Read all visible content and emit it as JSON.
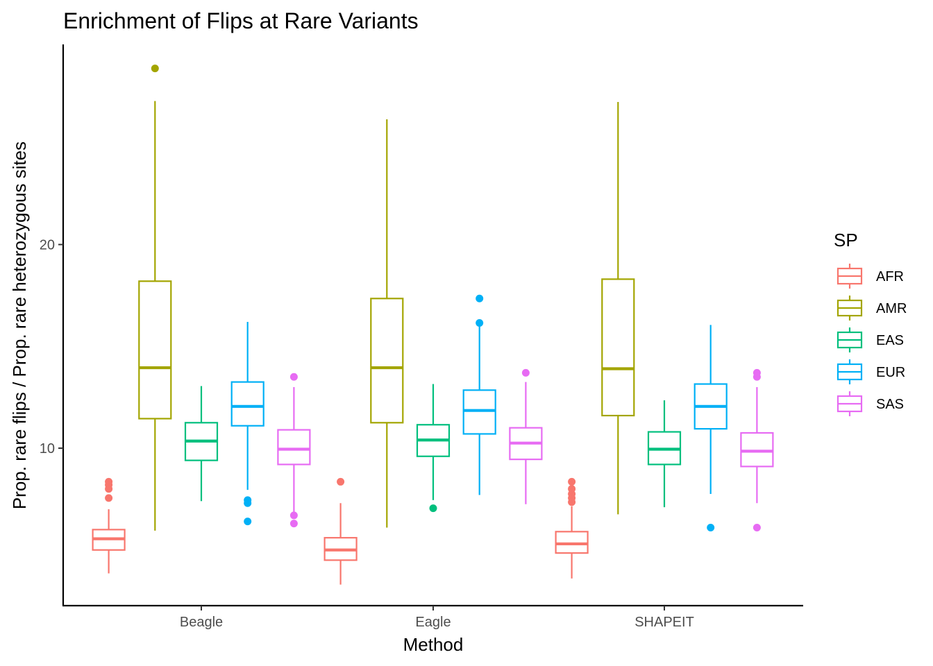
{
  "chart_data": {
    "type": "boxplot",
    "title": "Enrichment of Flips at Rare Variants",
    "xlabel": "Method",
    "ylabel": "Prop. rare flips / Prop. rare heterozygous sites",
    "categories": [
      "Beagle",
      "Eagle",
      "SHAPEIT"
    ],
    "y_ticks": [
      10,
      20
    ],
    "ylim": [
      2.4,
      30.0
    ],
    "grid": false,
    "legend": {
      "title": "SP",
      "position": "right"
    },
    "series": [
      {
        "name": "AFR",
        "color": "#F8766D",
        "boxes": [
          {
            "whisker_low": 3.85,
            "q1": 5.0,
            "median": 5.55,
            "q3": 6.0,
            "whisker_high": 7.0,
            "outliers": [
              7.55,
              8.0,
              8.2,
              8.35
            ]
          },
          {
            "whisker_low": 3.3,
            "q1": 4.5,
            "median": 5.0,
            "q3": 5.6,
            "whisker_high": 7.3,
            "outliers": [
              8.35
            ]
          },
          {
            "whisker_low": 3.6,
            "q1": 4.85,
            "median": 5.3,
            "q3": 5.9,
            "whisker_high": 7.15,
            "outliers": [
              7.35,
              7.55,
              7.75,
              8.0,
              8.35
            ]
          }
        ]
      },
      {
        "name": "AMR",
        "color": "#A3A500",
        "boxes": [
          {
            "whisker_low": 5.95,
            "q1": 11.45,
            "median": 13.95,
            "q3": 18.2,
            "whisker_high": 27.05,
            "outliers": [
              28.65
            ]
          },
          {
            "whisker_low": 6.1,
            "q1": 11.25,
            "median": 13.95,
            "q3": 17.35,
            "whisker_high": 26.15,
            "outliers": []
          },
          {
            "whisker_low": 6.75,
            "q1": 11.6,
            "median": 13.9,
            "q3": 18.3,
            "whisker_high": 27.0,
            "outliers": []
          }
        ]
      },
      {
        "name": "EAS",
        "color": "#00BF7D",
        "boxes": [
          {
            "whisker_low": 7.4,
            "q1": 9.4,
            "median": 10.35,
            "q3": 11.25,
            "whisker_high": 13.05,
            "outliers": []
          },
          {
            "whisker_low": 7.45,
            "q1": 9.6,
            "median": 10.4,
            "q3": 11.15,
            "whisker_high": 13.15,
            "outliers": [
              7.05
            ]
          },
          {
            "whisker_low": 7.1,
            "q1": 9.2,
            "median": 9.95,
            "q3": 10.8,
            "whisker_high": 12.35,
            "outliers": []
          }
        ]
      },
      {
        "name": "EUR",
        "color": "#00B0F6",
        "boxes": [
          {
            "whisker_low": 7.95,
            "q1": 11.1,
            "median": 12.05,
            "q3": 13.25,
            "whisker_high": 16.2,
            "outliers": [
              6.4,
              7.3,
              7.45
            ]
          },
          {
            "whisker_low": 7.7,
            "q1": 10.7,
            "median": 11.85,
            "q3": 12.85,
            "whisker_high": 16.05,
            "outliers": [
              16.15,
              17.35
            ]
          },
          {
            "whisker_low": 7.75,
            "q1": 10.95,
            "median": 12.05,
            "q3": 13.15,
            "whisker_high": 16.05,
            "outliers": [
              6.1
            ]
          }
        ]
      },
      {
        "name": "SAS",
        "color": "#E76BF3",
        "boxes": [
          {
            "whisker_low": 6.8,
            "q1": 9.2,
            "median": 9.95,
            "q3": 10.9,
            "whisker_high": 13.0,
            "outliers": [
              6.3,
              6.7,
              13.5
            ]
          },
          {
            "whisker_low": 7.25,
            "q1": 9.45,
            "median": 10.25,
            "q3": 11.0,
            "whisker_high": 13.25,
            "outliers": [
              13.7
            ]
          },
          {
            "whisker_low": 7.3,
            "q1": 9.1,
            "median": 9.85,
            "q3": 10.75,
            "whisker_high": 13.0,
            "outliers": [
              6.1,
              13.5,
              13.7
            ]
          }
        ]
      }
    ]
  }
}
